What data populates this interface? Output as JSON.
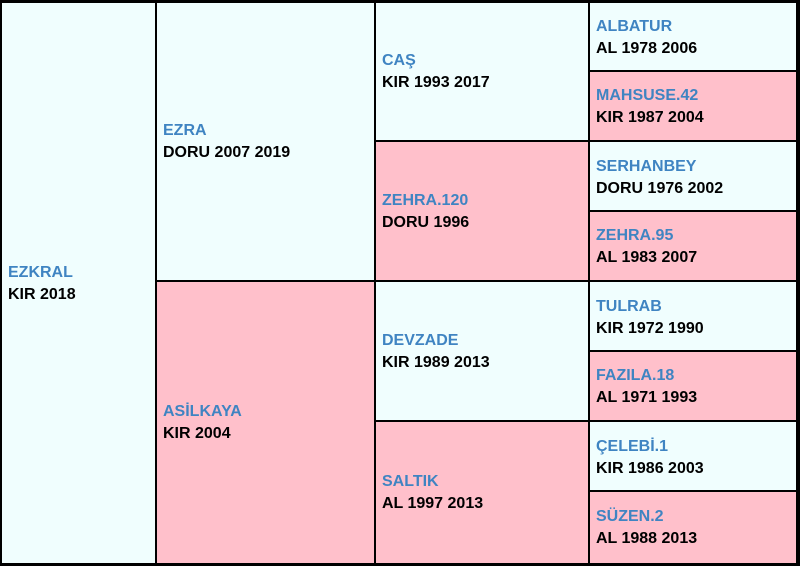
{
  "pedigree": {
    "horse": {
      "name": "EZKRAL",
      "info": "KIR 2018"
    },
    "gen2": [
      {
        "name": "EZRA",
        "info": "DORU 2007 2019"
      },
      {
        "name": "ASİLKAYA",
        "info": "KIR 2004"
      }
    ],
    "gen3": [
      {
        "name": "CAŞ",
        "info": "KIR 1993 2017"
      },
      {
        "name": "ZEHRA.120",
        "info": "DORU 1996"
      },
      {
        "name": "DEVZADE",
        "info": "KIR 1989 2013"
      },
      {
        "name": "SALTIK",
        "info": "AL 1997 2013"
      }
    ],
    "gen4": [
      {
        "name": "ALBATUR",
        "info": "AL 1978 2006"
      },
      {
        "name": "MAHSUSE.42",
        "info": "KIR 1987 2004"
      },
      {
        "name": "SERHANBEY",
        "info": "DORU 1976 2002"
      },
      {
        "name": "ZEHRA.95",
        "info": "AL 1983 2007"
      },
      {
        "name": "TULRAB",
        "info": "KIR 1972 1990"
      },
      {
        "name": "FAZILA.18",
        "info": "AL 1971 1993"
      },
      {
        "name": "ÇELEBİ.1",
        "info": "KIR 1986 2003"
      },
      {
        "name": "SÜZEN.2",
        "info": "AL 1988 2013"
      }
    ]
  },
  "colors": {
    "stallion_bg": "#f0fefe",
    "mare_bg": "#ffc0cb",
    "name_text": "#3f84c2",
    "info_text": "#000000",
    "border": "#000000"
  }
}
